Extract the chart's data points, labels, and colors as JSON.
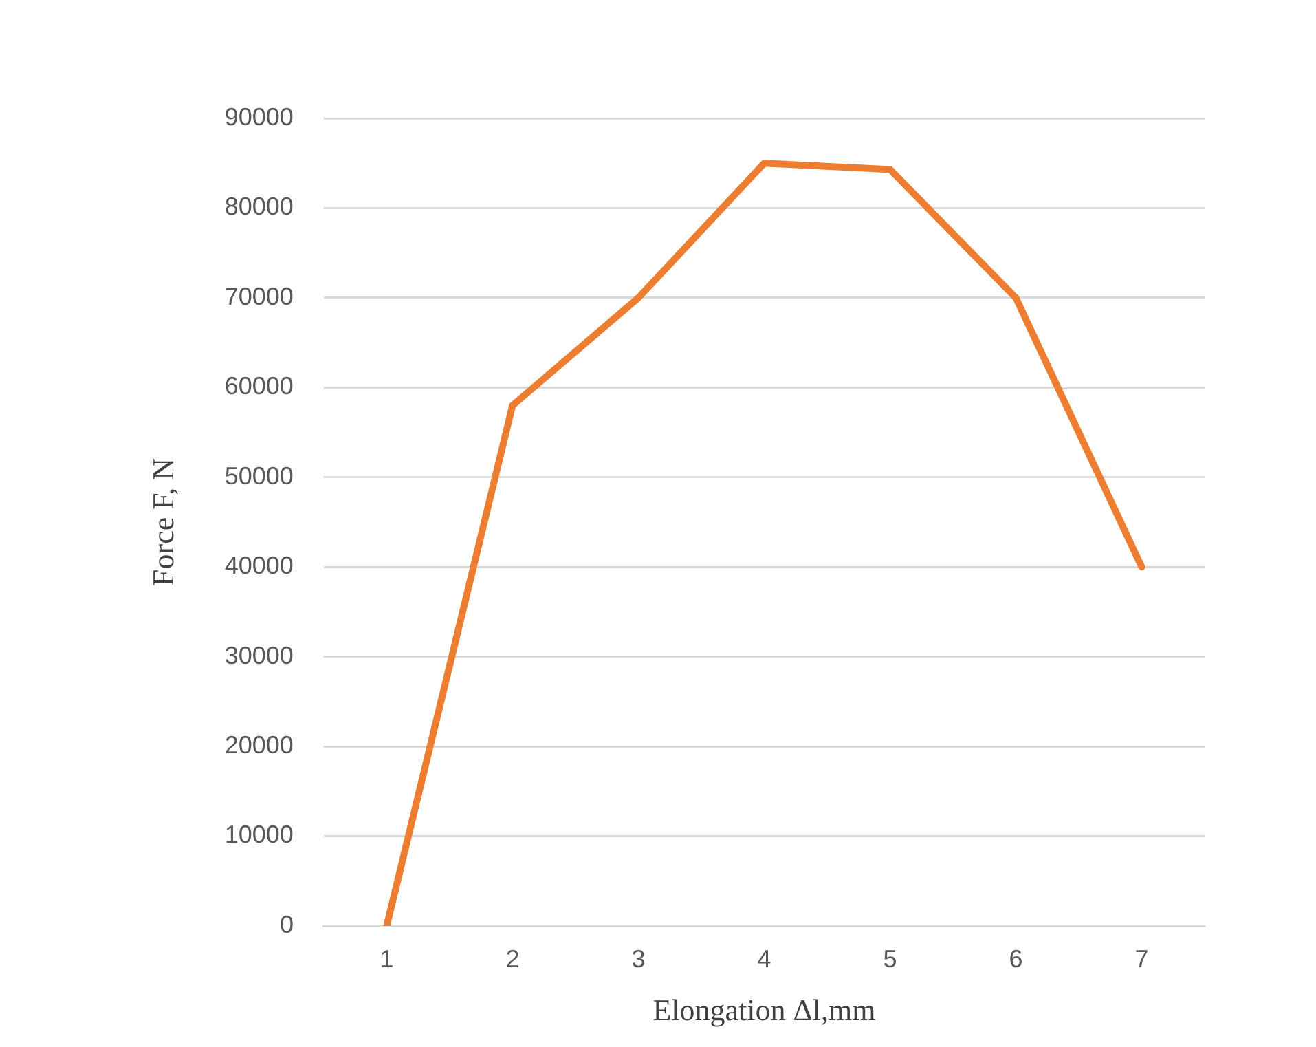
{
  "chart_data": {
    "type": "line",
    "xlabel": "Elongation Δl,mm",
    "ylabel": "Force F, N",
    "categories": [
      "1",
      "2",
      "3",
      "4",
      "5",
      "6",
      "7"
    ],
    "series": [
      {
        "color": "#ed7d31",
        "values": [
          0,
          58000,
          70000,
          85000,
          84300,
          70000,
          40000
        ]
      }
    ],
    "ylim": [
      0,
      90000
    ],
    "yticks": [
      0,
      10000,
      20000,
      30000,
      40000,
      50000,
      60000,
      70000,
      80000,
      90000
    ],
    "grid": "y",
    "legend": false,
    "marker": "none",
    "line_style": "solid"
  }
}
